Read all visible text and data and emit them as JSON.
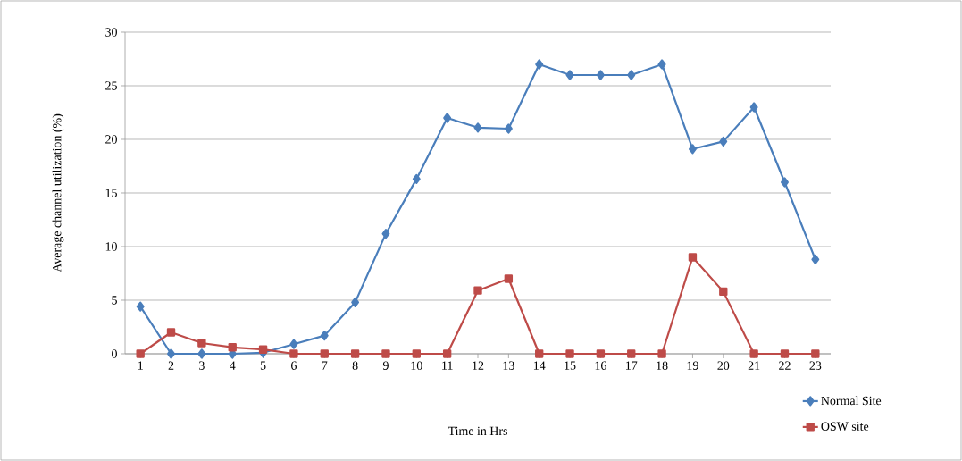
{
  "chart_data": {
    "type": "line",
    "xlabel": "Time in Hrs",
    "ylabel": "Average channel utilization (%)",
    "categories": [
      "1",
      "2",
      "3",
      "4",
      "5",
      "6",
      "7",
      "8",
      "9",
      "10",
      "11",
      "12",
      "13",
      "14",
      "15",
      "16",
      "17",
      "18",
      "19",
      "20",
      "21",
      "22",
      "23"
    ],
    "series": [
      {
        "name": "Normal Site",
        "color": "#4a7ebb",
        "marker": "diamond",
        "values": [
          4.4,
          0,
          0,
          0,
          0.1,
          0.9,
          1.7,
          4.8,
          11.2,
          16.3,
          22,
          21.1,
          21,
          27,
          26,
          26,
          26,
          27,
          19.1,
          19.8,
          23,
          16,
          8.8
        ]
      },
      {
        "name": "OSW site",
        "color": "#be4b48",
        "marker": "square",
        "values": [
          0,
          2,
          1,
          0.6,
          0.4,
          0,
          0,
          0,
          0,
          0,
          0,
          5.9,
          7,
          0,
          0,
          0,
          0,
          0,
          9,
          5.8,
          0,
          0,
          0
        ]
      }
    ],
    "ylim": [
      0,
      30
    ],
    "yticks": [
      0,
      5,
      10,
      15,
      20,
      25,
      30
    ],
    "grid": "y",
    "legend": "bottom right",
    "line_style": "solid"
  }
}
